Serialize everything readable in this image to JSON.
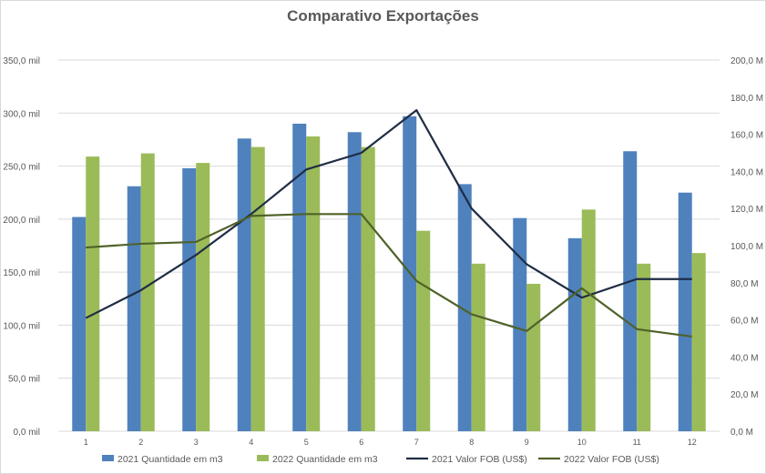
{
  "chart_data": {
    "type": "bar",
    "title": "Comparativo Exportações",
    "categories": [
      "1",
      "2",
      "3",
      "4",
      "5",
      "6",
      "7",
      "8",
      "9",
      "10",
      "11",
      "12"
    ],
    "y_axis_left": {
      "ticks": [
        "0,0 mil",
        "50,0 mil",
        "100,0 mil",
        "150,0 mil",
        "200,0 mil",
        "250,0 mil",
        "300,0 mil",
        "350,0 mil"
      ],
      "range": [
        0,
        350
      ],
      "unit": "mil"
    },
    "y_axis_right": {
      "ticks": [
        "0,0 M",
        "20,0 M",
        "40,0 M",
        "60,0 M",
        "80,0 M",
        "100,0 M",
        "120,0 M",
        "140,0 M",
        "160,0 M",
        "180,0 M",
        "200,0 M"
      ],
      "range": [
        0,
        200
      ],
      "unit": "M"
    },
    "grid": true,
    "legend_position": "bottom",
    "series": [
      {
        "name": "2021 Quantidade em m3",
        "type": "bar",
        "axis": "left",
        "color": "#4f81bd",
        "values": [
          202,
          231,
          248,
          276,
          290,
          282,
          297,
          233,
          201,
          182,
          264,
          225
        ]
      },
      {
        "name": "2022 Quantidade em m3",
        "type": "bar",
        "axis": "left",
        "color": "#9bbb59",
        "values": [
          259,
          262,
          253,
          268,
          278,
          268,
          189,
          158,
          139,
          209,
          158,
          168
        ]
      },
      {
        "name": "2021 Valor FOB (US$)",
        "type": "line",
        "axis": "right",
        "color": "#1f2d44",
        "values": [
          61,
          76,
          95,
          117,
          141,
          150,
          173,
          120,
          90,
          72,
          82,
          82
        ]
      },
      {
        "name": "2022 Valor FOB (US$)",
        "type": "line",
        "axis": "right",
        "color": "#4f6228",
        "values": [
          99,
          101,
          102,
          116,
          117,
          117,
          81,
          63,
          54,
          77,
          55,
          51
        ]
      }
    ]
  }
}
